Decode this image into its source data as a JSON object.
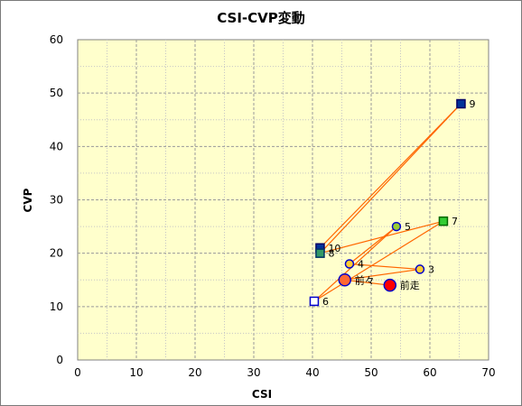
{
  "chart_data": {
    "type": "scatter",
    "title": "CSI-CVP変動",
    "xlabel": "CSI",
    "ylabel": "CVP",
    "xlim": [
      0,
      70
    ],
    "ylim": [
      0,
      60
    ],
    "xticks": [
      "0",
      "10",
      "20",
      "30",
      "40",
      "50",
      "60",
      "70"
    ],
    "yticks": [
      "0",
      "10",
      "20",
      "30",
      "40",
      "50",
      "60"
    ],
    "grid": true,
    "background_color": "#ffffcc",
    "line_color": "#ff6600",
    "points": [
      {
        "label": "前走",
        "x": 53.2,
        "y": 14.0,
        "shape": "circle",
        "size": "large",
        "fill": "#ff0000",
        "stroke": "#0000cc"
      },
      {
        "label": "前々",
        "x": 45.5,
        "y": 15.0,
        "shape": "circle",
        "size": "large",
        "fill": "#ff6633",
        "stroke": "#0000cc"
      },
      {
        "label": "3",
        "x": 58.3,
        "y": 17.0,
        "shape": "circle",
        "size": "medium",
        "fill": "#ffcc33",
        "stroke": "#0000cc"
      },
      {
        "label": "4",
        "x": 46.3,
        "y": 18.0,
        "shape": "circle",
        "size": "medium",
        "fill": "#ffcc33",
        "stroke": "#0000cc"
      },
      {
        "label": "5",
        "x": 54.3,
        "y": 25.0,
        "shape": "circle",
        "size": "medium",
        "fill": "#99cc33",
        "stroke": "#0000cc"
      },
      {
        "label": "6",
        "x": 40.3,
        "y": 11.0,
        "shape": "square",
        "size": "medium",
        "fill": "#ffffff",
        "stroke": "#0000cc"
      },
      {
        "label": "7",
        "x": 62.3,
        "y": 26.0,
        "shape": "square",
        "size": "medium",
        "fill": "#33cc33",
        "stroke": "#006600"
      },
      {
        "label": "8",
        "x": 41.3,
        "y": 20.0,
        "shape": "square",
        "size": "medium",
        "fill": "#339966",
        "stroke": "#003366"
      },
      {
        "label": "9",
        "x": 65.3,
        "y": 48.0,
        "shape": "square",
        "size": "medium",
        "fill": "#003399",
        "stroke": "#000066"
      },
      {
        "label": "10",
        "x": 41.3,
        "y": 21.0,
        "shape": "square",
        "size": "medium",
        "fill": "#003399",
        "stroke": "#000066"
      }
    ]
  }
}
